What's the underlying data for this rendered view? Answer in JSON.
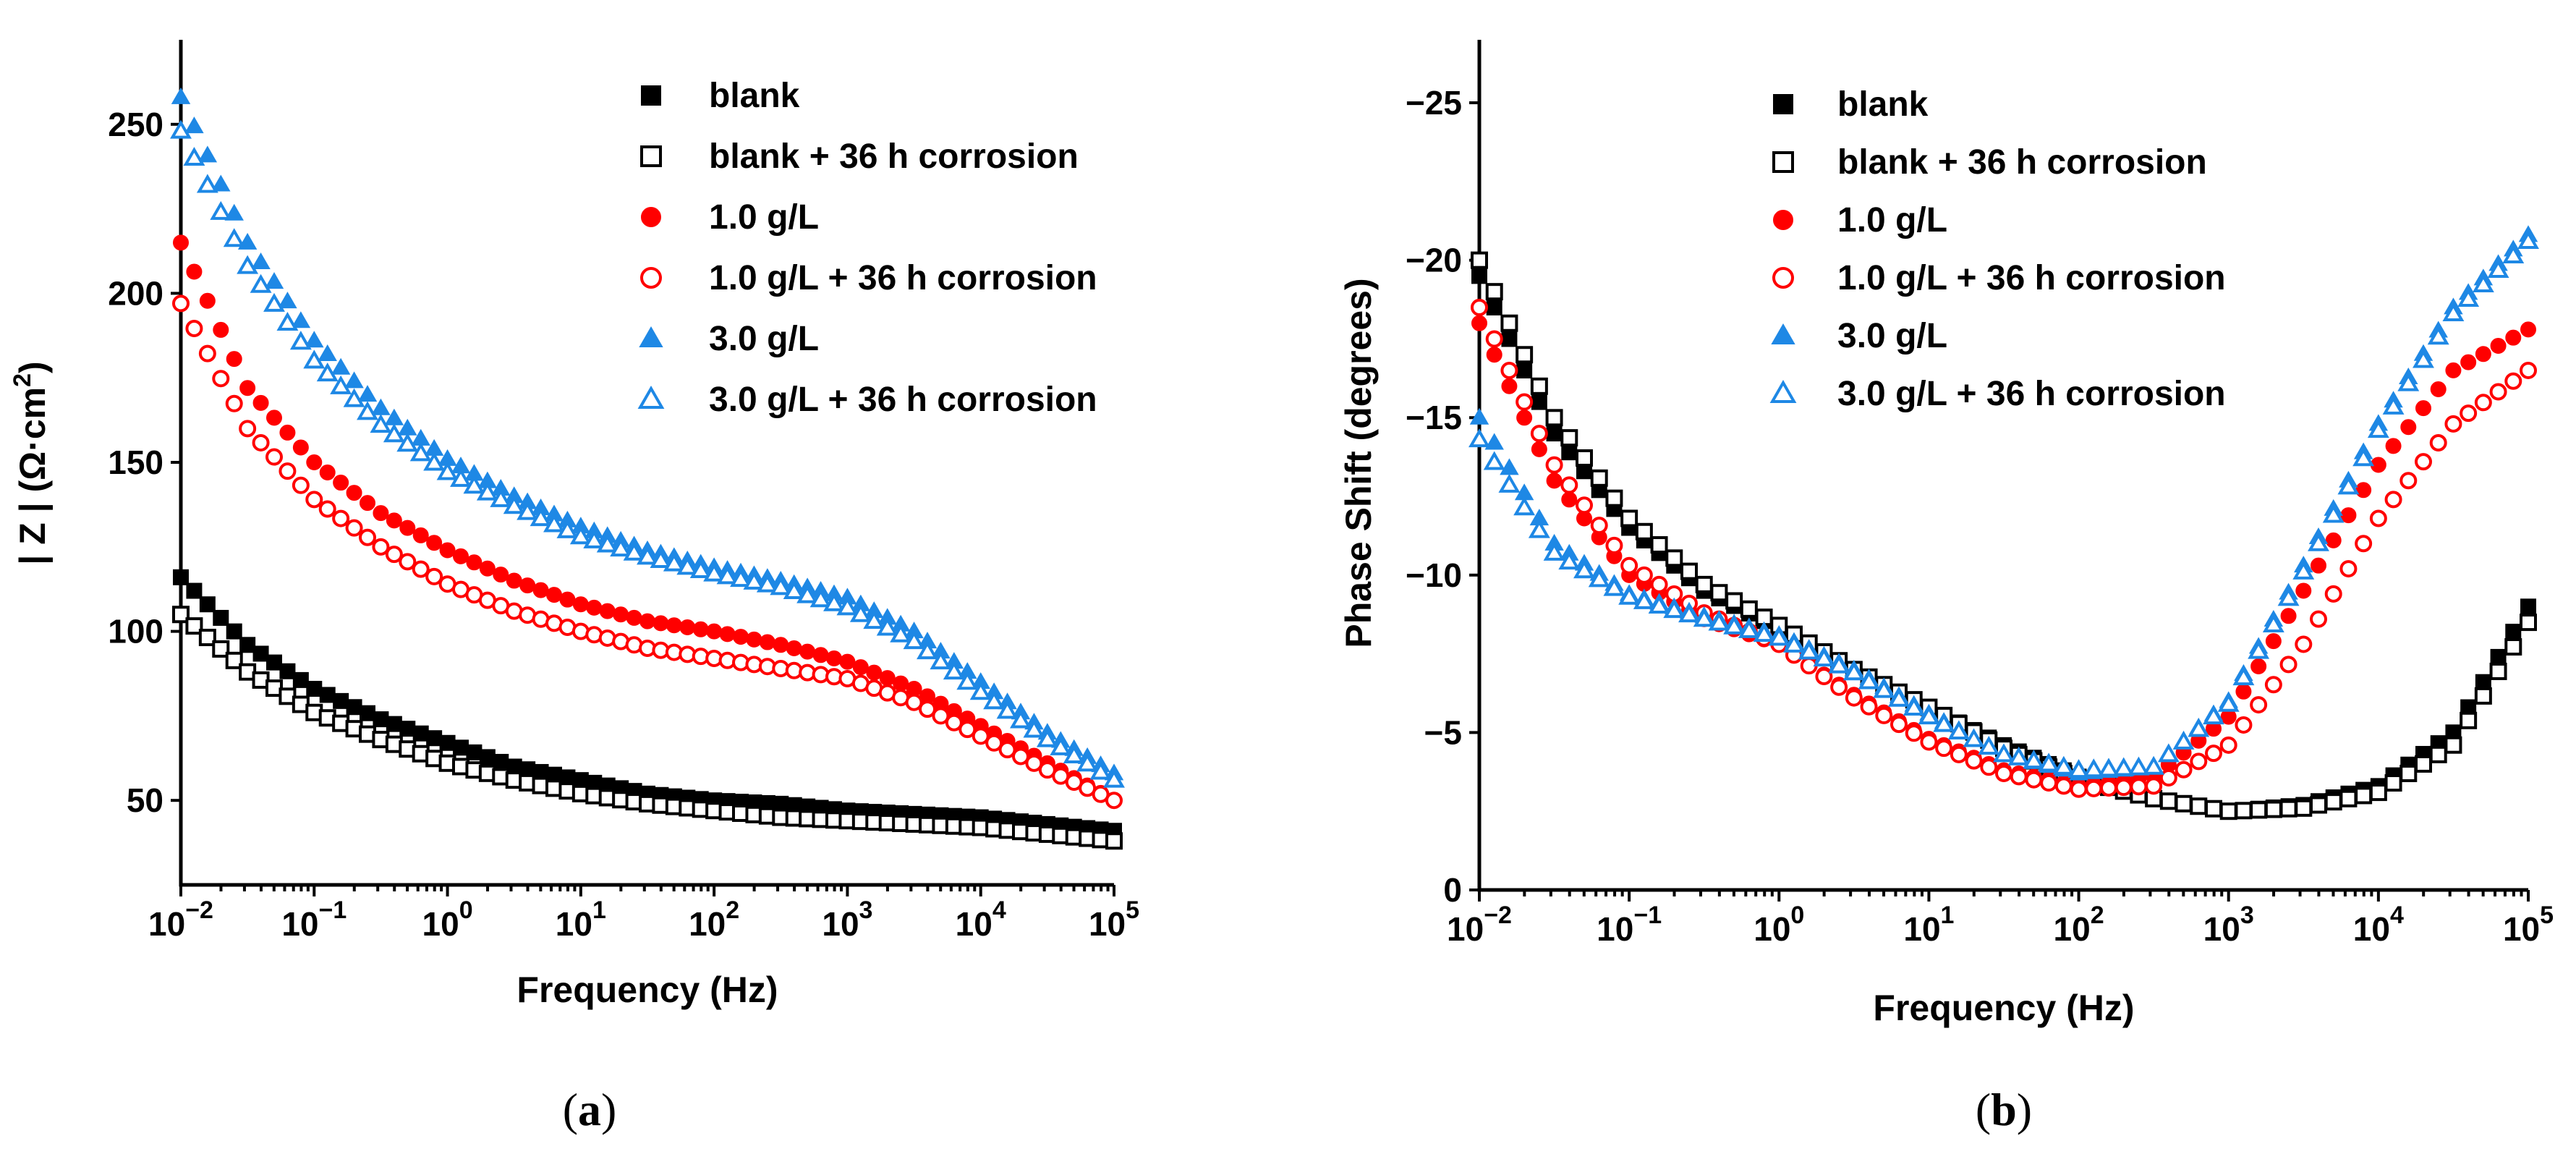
{
  "chart_data": [
    {
      "panel": "a",
      "caption_open": "(",
      "caption_letter": "a",
      "caption_close": ")",
      "type": "scatter",
      "title": "",
      "xlabel": "Frequency (Hz)",
      "ylabel": "|Z| (Ω·cm²)",
      "ylabel_parts": {
        "main": "| Z | (Ω·cm",
        "sup": "2",
        "end": ")"
      },
      "xscale": "log",
      "xlim": [
        0.01,
        100000
      ],
      "ylim": [
        25,
        275
      ],
      "yticks": [
        50,
        100,
        150,
        200,
        250
      ],
      "ytick_labels": [
        "50",
        "100",
        "150",
        "200",
        "250"
      ],
      "xticks": [
        0.01,
        0.1,
        1,
        10,
        100,
        1000,
        10000,
        100000
      ],
      "xtick_labels": [
        {
          "base": "10",
          "exp": "−2"
        },
        {
          "base": "10",
          "exp": "−1"
        },
        {
          "base": "10",
          "exp": "0"
        },
        {
          "base": "10",
          "exp": "1"
        },
        {
          "base": "10",
          "exp": "2"
        },
        {
          "base": "10",
          "exp": "3"
        },
        {
          "base": "10",
          "exp": "4"
        },
        {
          "base": "10",
          "exp": "5"
        }
      ],
      "legend_position": "top-right",
      "x": [
        0.01,
        0.0316,
        0.1,
        0.316,
        1,
        3.16,
        10,
        31.6,
        100,
        316,
        1000,
        3160,
        10000,
        31600,
        100000
      ],
      "series": [
        {
          "name": "blank",
          "color": "#000000",
          "marker": "square",
          "filled": true,
          "values": [
            116,
            96,
            83,
            74,
            67,
            60,
            56,
            52,
            50,
            49,
            47,
            46,
            45,
            43,
            41
          ]
        },
        {
          "name": "blank + 36 h corrosion",
          "color": "#000000",
          "marker": "square",
          "filled": false,
          "values": [
            105,
            88,
            76,
            68,
            61,
            56,
            52,
            49,
            47,
            45,
            44,
            43,
            42,
            40,
            38
          ]
        },
        {
          "name": "1.0 g/L",
          "color": "#ff0000",
          "marker": "circle",
          "filled": true,
          "values": [
            215,
            172,
            150,
            135,
            124,
            115,
            108,
            103,
            100,
            96,
            91,
            83,
            72,
            61,
            50
          ]
        },
        {
          "name": "1.0 g/L + 36 h corrosion",
          "color": "#ff0000",
          "marker": "circle",
          "filled": false,
          "values": [
            197,
            160,
            139,
            125,
            114,
            106,
            100,
            95,
            92,
            89,
            86,
            79,
            69,
            59,
            50
          ]
        },
        {
          "name": "3.0 g/L",
          "color": "#1e88e5",
          "marker": "triangle",
          "filled": true,
          "values": [
            258,
            215,
            186,
            166,
            151,
            140,
            131,
            124,
            119,
            115,
            110,
            100,
            85,
            70,
            58
          ]
        },
        {
          "name": "3.0 g/L + 36 h corrosion",
          "color": "#1e88e5",
          "marker": "triangle",
          "filled": false,
          "values": [
            248,
            208,
            180,
            161,
            147,
            137,
            128,
            122,
            117,
            113,
            107,
            97,
            82,
            68,
            56
          ]
        }
      ]
    },
    {
      "panel": "b",
      "caption_open": "(",
      "caption_letter": "b",
      "caption_close": ")",
      "type": "scatter",
      "title": "",
      "xlabel": "Frequency (Hz)",
      "ylabel": "Phase Shift (degrees)",
      "xscale": "log",
      "xlim": [
        0.01,
        100000
      ],
      "ylim": [
        0,
        -27
      ],
      "yticks": [
        0,
        -5,
        -10,
        -15,
        -20,
        -25
      ],
      "ytick_labels": [
        "0",
        "−5",
        "−10",
        "−15",
        "−20",
        "−25"
      ],
      "xticks": [
        0.01,
        0.1,
        1,
        10,
        100,
        1000,
        10000,
        100000
      ],
      "xtick_labels": [
        {
          "base": "10",
          "exp": "−2"
        },
        {
          "base": "10",
          "exp": "−1"
        },
        {
          "base": "10",
          "exp": "0"
        },
        {
          "base": "10",
          "exp": "1"
        },
        {
          "base": "10",
          "exp": "2"
        },
        {
          "base": "10",
          "exp": "3"
        },
        {
          "base": "10",
          "exp": "4"
        },
        {
          "base": "10",
          "exp": "5"
        }
      ],
      "legend_position": "top-right",
      "x": [
        0.01,
        0.0316,
        0.1,
        0.316,
        1,
        3.16,
        10,
        31.6,
        100,
        316,
        1000,
        3160,
        10000,
        31600,
        100000
      ],
      "series": [
        {
          "name": "blank",
          "color": "#000000",
          "marker": "square",
          "filled": true,
          "values": [
            -19.5,
            -14.5,
            -11.5,
            -9.5,
            -8.3,
            -7.0,
            -5.8,
            -4.6,
            -3.6,
            -2.9,
            -2.5,
            -2.7,
            -3.3,
            -5.0,
            -9.0
          ]
        },
        {
          "name": "blank + 36 h corrosion",
          "color": "#000000",
          "marker": "square",
          "filled": false,
          "values": [
            -20.0,
            -15.0,
            -11.8,
            -9.7,
            -8.4,
            -7.0,
            -5.8,
            -4.5,
            -3.5,
            -2.9,
            -2.5,
            -2.6,
            -3.1,
            -4.6,
            -8.5
          ]
        },
        {
          "name": "1.0 g/L",
          "color": "#ff0000",
          "marker": "circle",
          "filled": true,
          "values": [
            -18.0,
            -13.0,
            -10.0,
            -8.6,
            -7.8,
            -6.2,
            -4.8,
            -3.8,
            -3.3,
            -3.6,
            -5.5,
            -9.5,
            -13.5,
            -16.5,
            -17.8
          ]
        },
        {
          "name": "1.0 g/L + 36 h corrosion",
          "color": "#ff0000",
          "marker": "circle",
          "filled": false,
          "values": [
            -18.5,
            -13.5,
            -10.3,
            -8.8,
            -7.8,
            -6.1,
            -4.7,
            -3.7,
            -3.2,
            -3.3,
            -4.6,
            -7.8,
            -11.8,
            -14.8,
            -16.5
          ]
        },
        {
          "name": "3.0 g/L",
          "color": "#1e88e5",
          "marker": "triangle",
          "filled": true,
          "values": [
            -15.0,
            -11.0,
            -9.4,
            -8.7,
            -8.1,
            -7.0,
            -5.6,
            -4.3,
            -3.7,
            -3.9,
            -6.0,
            -10.3,
            -14.8,
            -18.5,
            -20.8
          ]
        },
        {
          "name": "3.0 g/L + 36 h corrosion",
          "color": "#1e88e5",
          "marker": "triangle",
          "filled": false,
          "values": [
            -14.3,
            -10.7,
            -9.3,
            -8.6,
            -8.0,
            -6.9,
            -5.5,
            -4.3,
            -3.8,
            -3.9,
            -5.9,
            -10.1,
            -14.6,
            -18.3,
            -20.6
          ]
        }
      ]
    }
  ]
}
